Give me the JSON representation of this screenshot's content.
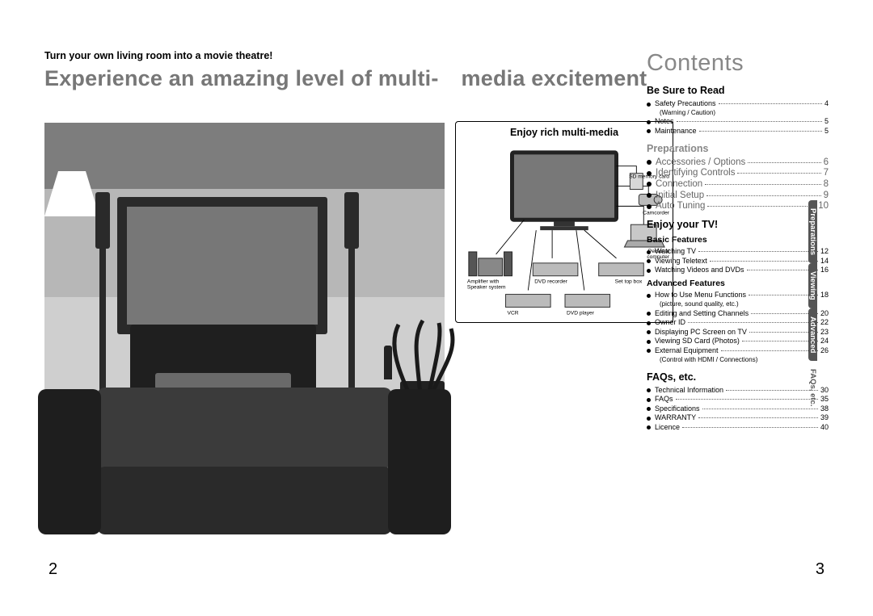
{
  "page": {
    "left_num": "2",
    "right_num": "3",
    "tagline": "Turn your own living room into a movie theatre!",
    "headline_a": "Experience an amazing level of multi-",
    "headline_b": "media excitement"
  },
  "inset": {
    "title": "Enjoy rich multi-media",
    "devices": {
      "sd": "SD memory card",
      "cam": "Camcorder",
      "pc": "Personal\ncomputer",
      "amp1": "Amplifier with",
      "amp2": "Speaker system",
      "dvdrec": "DVD recorder",
      "stb": "Set top box",
      "vcr": "VCR",
      "dvdplay": "DVD player"
    }
  },
  "contents": {
    "title": "Contents",
    "sections": [
      {
        "title": "Be Sure to Read",
        "kind": "bold",
        "items": [
          {
            "label": "Safety Precautions",
            "page": "4",
            "note": "(Warning / Caution)"
          },
          {
            "label": "Notes",
            "page": "5"
          },
          {
            "label": "Maintenance",
            "page": "5"
          }
        ]
      },
      {
        "title": "Preparations",
        "kind": "grey-prep",
        "items": [
          {
            "label": "Accessories / Options",
            "page": "6"
          },
          {
            "label": "Identifying Controls",
            "page": "7"
          },
          {
            "label": "Connection",
            "page": "8"
          },
          {
            "label": "Initial Setup",
            "page": "9"
          },
          {
            "label": "Auto Tuning",
            "page": "10"
          }
        ]
      },
      {
        "title": "Enjoy your TV!",
        "kind": "bold",
        "subgroups": [
          {
            "subtitle": "Basic Features",
            "items": [
              {
                "label": "Watching TV",
                "page": "12"
              },
              {
                "label": "Viewing Teletext",
                "page": "14"
              },
              {
                "label": "Watching Videos and DVDs",
                "page": "16"
              }
            ]
          },
          {
            "subtitle": "Advanced Features",
            "items": [
              {
                "label": "How to Use Menu Functions",
                "page": "18",
                "note": "(picture, sound quality, etc.)"
              },
              {
                "label": "Editing and Setting Channels",
                "page": "20"
              },
              {
                "label": "Owner ID",
                "page": "22"
              },
              {
                "label": "Displaying PC Screen on TV",
                "page": "23"
              },
              {
                "label": "Viewing SD Card (Photos)",
                "page": "24"
              },
              {
                "label": "External Equipment",
                "page": "26",
                "note": "(Control with HDMI / Connections)"
              }
            ]
          }
        ]
      },
      {
        "title": "FAQs, etc.",
        "kind": "bold",
        "items": [
          {
            "label": "Technical Information",
            "page": "30"
          },
          {
            "label": "FAQs",
            "page": "35"
          },
          {
            "label": "Specifications",
            "page": "38"
          },
          {
            "label": "WARRANTY",
            "page": "39"
          },
          {
            "label": "Licence",
            "page": "40"
          }
        ]
      }
    ]
  },
  "tabs": [
    {
      "label": "Preparations",
      "active": true
    },
    {
      "label": "Viewing",
      "active": true
    },
    {
      "label": "Advanced",
      "active": true
    },
    {
      "label": "FAQs, etc.",
      "active": false
    }
  ],
  "colors": {
    "headline": "#777",
    "tab_bg": "#555",
    "toc_grey": "#888",
    "prep_text": "#666"
  }
}
